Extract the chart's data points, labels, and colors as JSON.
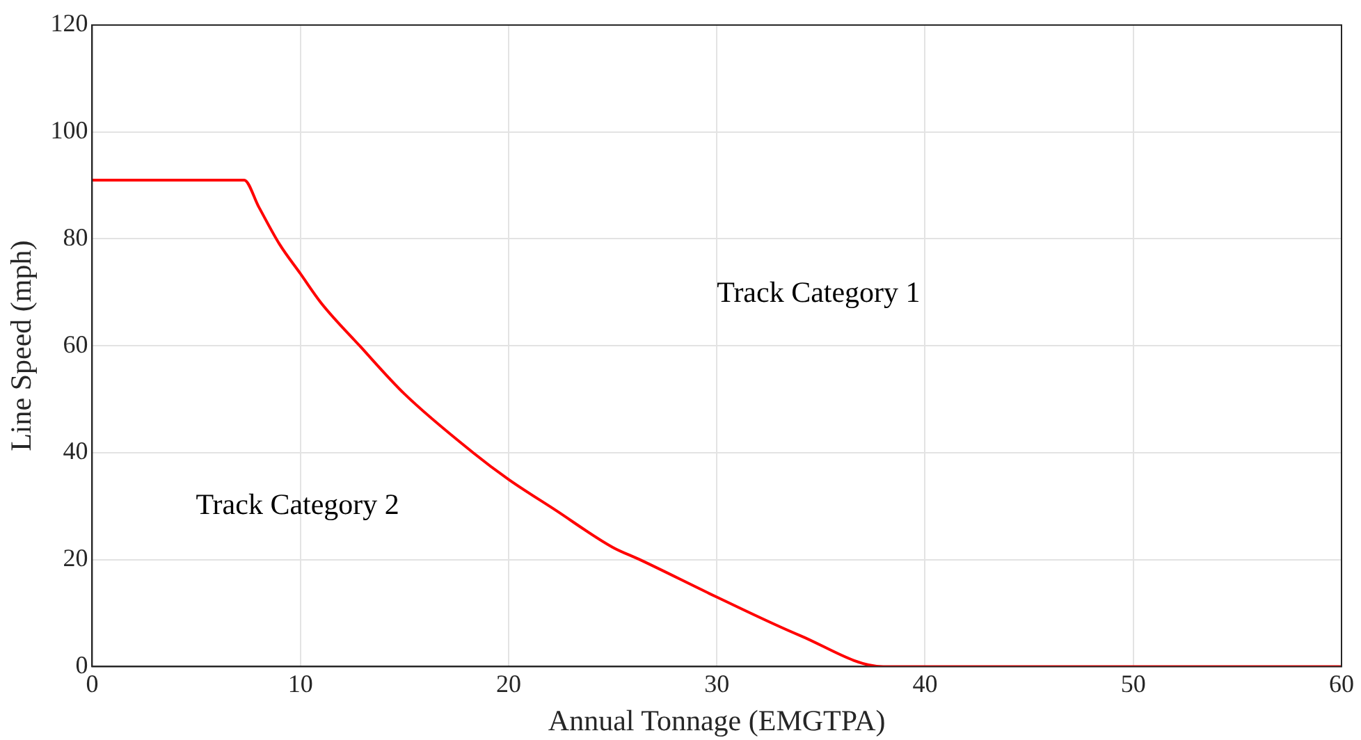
{
  "chart_data": {
    "type": "line",
    "xlabel": "Annual Tonnage (EMGTPA)",
    "ylabel": "Line Speed (mph)",
    "xlim": [
      0,
      60
    ],
    "xticks": [
      0,
      10,
      20,
      30,
      40,
      50,
      60
    ],
    "ylim": [
      0,
      120
    ],
    "yticks": [
      0,
      20,
      40,
      60,
      80,
      100,
      120
    ],
    "grid": true,
    "series": [
      {
        "color": "#ff0000",
        "x": [
          0,
          7.3,
          8,
          9,
          10,
          11,
          12.85,
          15,
          18.3,
          20,
          22.2,
          25,
          26.3,
          30,
          34,
          38,
          60
        ],
        "values": [
          91,
          91,
          86,
          79,
          73.5,
          68,
          60,
          51,
          40,
          35,
          29.4,
          22.3,
          20,
          13,
          5.8,
          0,
          0
        ]
      }
    ],
    "annotations": [
      "Track Category 1",
      "Track Category 2"
    ]
  }
}
